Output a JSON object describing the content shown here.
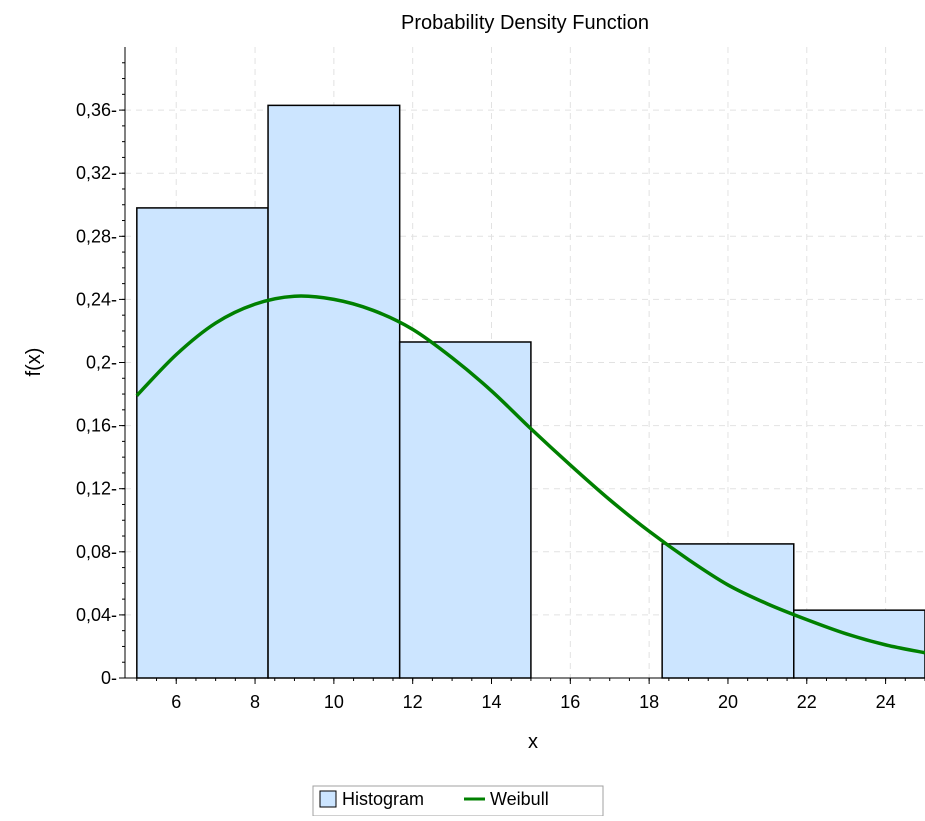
{
  "chart_data": {
    "type": "bar",
    "title": "Probability Density Function",
    "xlabel": "x",
    "ylabel": "f(x)",
    "xlim": [
      4.7,
      25
    ],
    "ylim": [
      0,
      0.4
    ],
    "x_ticks": [
      6,
      8,
      10,
      12,
      14,
      16,
      18,
      20,
      22,
      24
    ],
    "y_ticks": [
      0,
      0.04,
      0.08,
      0.12,
      0.16,
      0.2,
      0.24,
      0.28,
      0.32,
      0.36
    ],
    "y_tick_labels": [
      "0",
      "0,04",
      "0,08",
      "0,12",
      "0,16",
      "0,2",
      "0,24",
      "0,28",
      "0,32",
      "0,36"
    ],
    "grid": true,
    "legend_placement": "bottom-center",
    "series": [
      {
        "name": "Histogram",
        "type": "histogram",
        "color": "#cce5ff",
        "edge_color": "#000000",
        "bins": [
          {
            "x0": 5.0,
            "x1": 8.33,
            "value": 0.298
          },
          {
            "x0": 8.33,
            "x1": 11.67,
            "value": 0.363
          },
          {
            "x0": 11.67,
            "x1": 15.0,
            "value": 0.213
          },
          {
            "x0": 15.0,
            "x1": 18.33,
            "value": 0.0
          },
          {
            "x0": 18.33,
            "x1": 21.67,
            "value": 0.085
          },
          {
            "x0": 21.67,
            "x1": 25.0,
            "value": 0.043
          }
        ]
      },
      {
        "name": "Weibull",
        "type": "line",
        "color": "#008000",
        "x": [
          5,
          6,
          7,
          8,
          9,
          10,
          11,
          12,
          13,
          14,
          15,
          16,
          17,
          18,
          19,
          20,
          21,
          22,
          23,
          24,
          25
        ],
        "y": [
          0.179,
          0.205,
          0.225,
          0.237,
          0.242,
          0.24,
          0.233,
          0.221,
          0.203,
          0.182,
          0.158,
          0.135,
          0.113,
          0.093,
          0.075,
          0.059,
          0.047,
          0.037,
          0.028,
          0.021,
          0.016
        ]
      }
    ]
  }
}
